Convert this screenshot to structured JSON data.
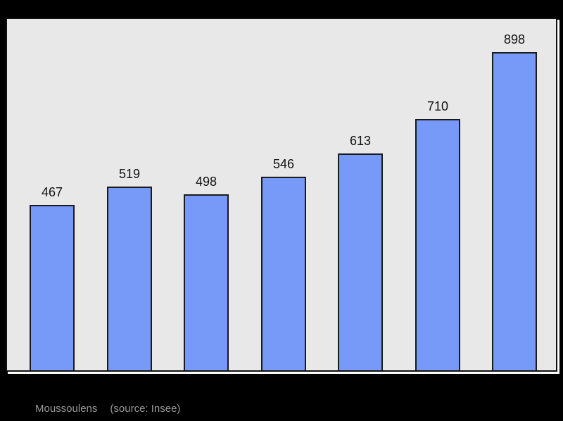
{
  "page": {
    "background": "#000000"
  },
  "chart": {
    "colors": {
      "plot_bg": "#e8e8e8",
      "plot_border": "#111111",
      "plot_shadow": "#ffffff",
      "bar_fill": "#7799f7",
      "bar_border": "#1a1a1a",
      "label_color": "#111111",
      "caption_color": "#999999"
    }
  },
  "chart_data": {
    "type": "bar",
    "values": [
      467,
      519,
      498,
      546,
      613,
      710,
      898
    ],
    "data_labels": [
      "467",
      "519",
      "498",
      "546",
      "613",
      "710",
      "898"
    ],
    "title": "",
    "xlabel": "",
    "ylabel": "",
    "ylim": [
      0,
      1000
    ],
    "grid": false,
    "legend": false,
    "axis_tick_labels_visible": false
  },
  "caption": {
    "name": "Moussoulens",
    "source": "(source: Insee)"
  }
}
